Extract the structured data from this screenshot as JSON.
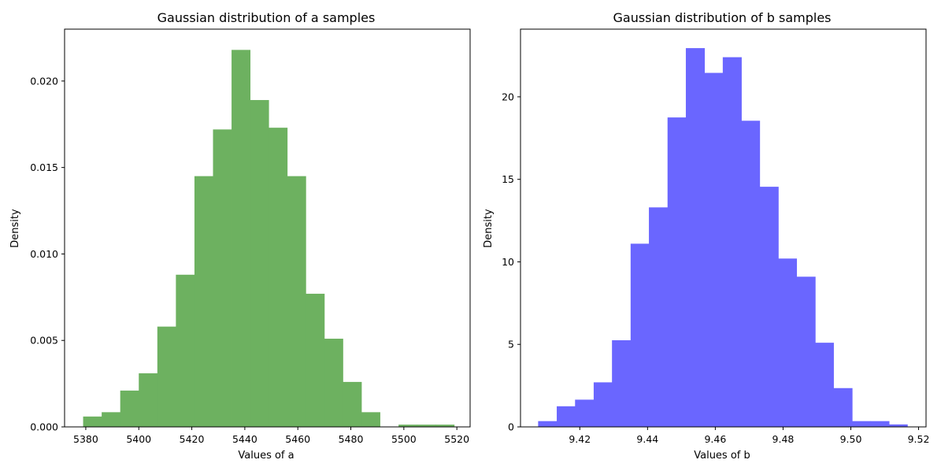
{
  "chart_data": [
    {
      "type": "bar",
      "title": "Gaussian distribution of a samples",
      "xlabel": "Values of a",
      "ylabel": "Density",
      "color": "#6db160",
      "xlim": [
        5372,
        5525
      ],
      "ylim": [
        0,
        0.023
      ],
      "xticks": [
        5380,
        5400,
        5420,
        5440,
        5460,
        5480,
        5500,
        5520
      ],
      "xtick_labels": [
        "5380",
        "5400",
        "5420",
        "5440",
        "5460",
        "5480",
        "5500",
        "5520"
      ],
      "yticks": [
        0,
        0.005,
        0.01,
        0.015,
        0.02
      ],
      "ytick_labels": [
        "0.000",
        "0.005",
        "0.010",
        "0.015",
        "0.020"
      ],
      "bin_edges": [
        5379,
        5386,
        5393,
        5400,
        5407,
        5414,
        5421,
        5428,
        5435,
        5442,
        5449,
        5456,
        5463,
        5470,
        5477,
        5484,
        5491,
        5498,
        5505,
        5512,
        5519
      ],
      "values": [
        0.0006,
        0.00085,
        0.0021,
        0.0031,
        0.0058,
        0.0088,
        0.0145,
        0.0172,
        0.0218,
        0.0189,
        0.0173,
        0.0145,
        0.0077,
        0.0051,
        0.0026,
        0.00085,
        0,
        0.00013,
        0.00013,
        0.00013
      ]
    },
    {
      "type": "bar",
      "title": "Gaussian distribution of b samples",
      "xlabel": "Values of b",
      "ylabel": "Density",
      "color": "#6a66ff",
      "xlim": [
        9.4025,
        9.5222
      ],
      "ylim": [
        0,
        24.1
      ],
      "xticks": [
        9.42,
        9.44,
        9.46,
        9.48,
        9.5,
        9.52
      ],
      "xtick_labels": [
        "9.42",
        "9.44",
        "9.46",
        "9.48",
        "9.50",
        "9.52"
      ],
      "yticks": [
        0,
        5,
        10,
        15,
        20
      ],
      "ytick_labels": [
        "0",
        "5",
        "10",
        "15",
        "20"
      ],
      "bin_edges": [
        9.4077,
        9.4132,
        9.4186,
        9.4241,
        9.4295,
        9.435,
        9.4404,
        9.4459,
        9.4513,
        9.4568,
        9.4622,
        9.4677,
        9.4731,
        9.4786,
        9.484,
        9.4895,
        9.4949,
        9.5004,
        9.5058,
        9.5113,
        9.5167
      ],
      "values": [
        0.35,
        1.25,
        1.65,
        2.7,
        5.25,
        11.1,
        13.3,
        18.75,
        22.95,
        21.45,
        22.4,
        18.55,
        14.55,
        10.2,
        9.1,
        5.1,
        2.35,
        0.35,
        0.35,
        0.15
      ]
    }
  ]
}
